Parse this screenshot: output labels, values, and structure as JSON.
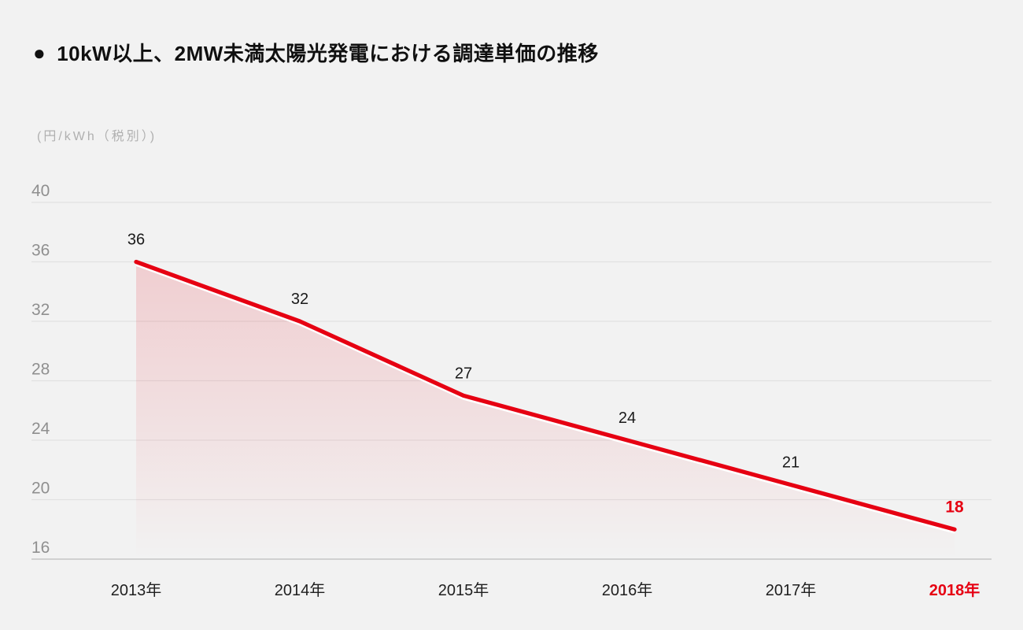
{
  "title": {
    "bullet": "●",
    "text": "10kW以上、2MW未満太陽光発電における調達単価の推移"
  },
  "chart_data": {
    "type": "area",
    "title": "10kW以上、2MW未満太陽光発電における調達単価の推移",
    "unit_label": "(円/kWh（税別）)",
    "categories": [
      "2013年",
      "2014年",
      "2015年",
      "2016年",
      "2017年",
      "2018年"
    ],
    "values": [
      36,
      32,
      27,
      24,
      21,
      18
    ],
    "yticks": [
      40,
      36,
      32,
      28,
      24,
      20,
      16
    ],
    "ylim": [
      16,
      40
    ],
    "grid": true,
    "legend": "none",
    "highlight_last_point": true,
    "colors": {
      "line": "#e60012",
      "highlight": "#e60012",
      "area_base": "#e60012",
      "data_label": "#1a1a1a",
      "x_label": "#1f1f1f",
      "y_tick_label": "#8f8f8f",
      "unit_label": "#b0b0b0",
      "grid_line": "#e1e1e1",
      "baseline": "#d0d0d0",
      "background": "#f2f2f2",
      "line_underlay": "#ffffff"
    }
  }
}
